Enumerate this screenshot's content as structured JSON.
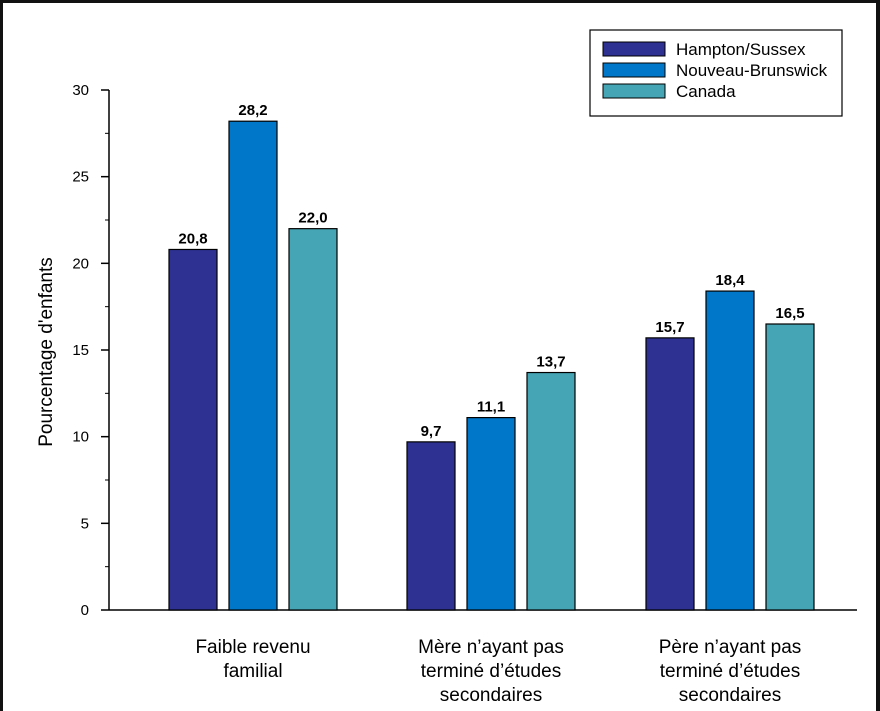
{
  "chart_data": {
    "type": "bar",
    "ylabel": "Pourcentage d'enfants",
    "ylim": [
      0,
      30
    ],
    "yticks": [
      0,
      5,
      10,
      15,
      20,
      25,
      30
    ],
    "grid": false,
    "legend_position": "top-right",
    "categories": [
      [
        "Faible revenu",
        "familial"
      ],
      [
        "Mère n’ayant pas",
        "terminé d’études",
        "secondaires"
      ],
      [
        "Père n’ayant pas",
        "terminé d’études",
        "secondaires"
      ]
    ],
    "series": [
      {
        "name": "Hampton/Sussex",
        "color": "#2e3192",
        "values": [
          20.8,
          9.7,
          15.7
        ],
        "labels": [
          "20,8",
          "9,7",
          "15,7"
        ]
      },
      {
        "name": "Nouveau-Brunswick",
        "color": "#0077c8",
        "values": [
          28.2,
          11.1,
          18.4
        ],
        "labels": [
          "28,2",
          "11,1",
          "18,4"
        ]
      },
      {
        "name": "Canada",
        "color": "#45a5b4",
        "values": [
          22.0,
          13.7,
          16.5
        ],
        "labels": [
          "22,0",
          "13,7",
          "16,5"
        ]
      }
    ]
  }
}
